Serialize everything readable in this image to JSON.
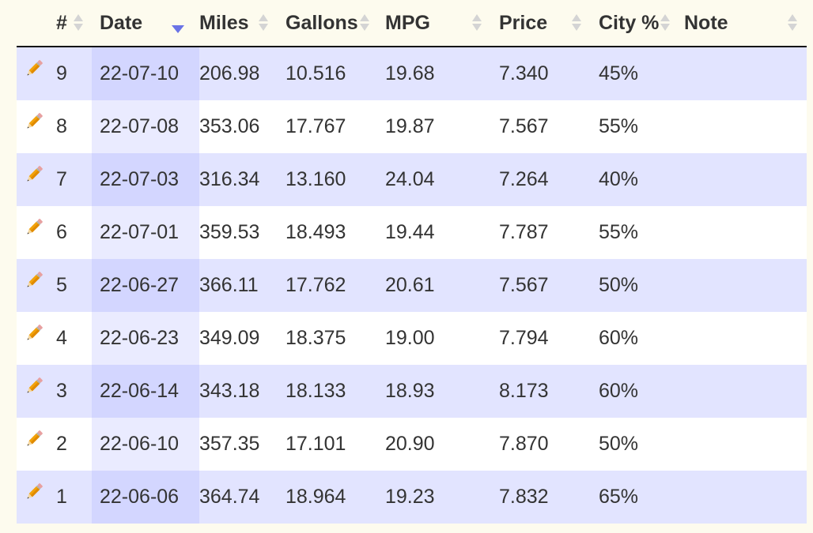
{
  "table": {
    "columns": [
      {
        "key": "edit",
        "label": ""
      },
      {
        "key": "num",
        "label": "#"
      },
      {
        "key": "date",
        "label": "Date",
        "sorted": "desc"
      },
      {
        "key": "miles",
        "label": "Miles"
      },
      {
        "key": "gallons",
        "label": "Gallons"
      },
      {
        "key": "mpg",
        "label": "MPG"
      },
      {
        "key": "price",
        "label": "Price"
      },
      {
        "key": "city",
        "label": "City %"
      },
      {
        "key": "note",
        "label": "Note"
      }
    ],
    "rows": [
      {
        "num": "9",
        "date": "22-07-10",
        "miles": "206.98",
        "gallons": "10.516",
        "mpg": "19.68",
        "price": "7.340",
        "city": "45%",
        "note": ""
      },
      {
        "num": "8",
        "date": "22-07-08",
        "miles": "353.06",
        "gallons": "17.767",
        "mpg": "19.87",
        "price": "7.567",
        "city": "55%",
        "note": ""
      },
      {
        "num": "7",
        "date": "22-07-03",
        "miles": "316.34",
        "gallons": "13.160",
        "mpg": "24.04",
        "price": "7.264",
        "city": "40%",
        "note": ""
      },
      {
        "num": "6",
        "date": "22-07-01",
        "miles": "359.53",
        "gallons": "18.493",
        "mpg": "19.44",
        "price": "7.787",
        "city": "55%",
        "note": ""
      },
      {
        "num": "5",
        "date": "22-06-27",
        "miles": "366.11",
        "gallons": "17.762",
        "mpg": "20.61",
        "price": "7.567",
        "city": "50%",
        "note": ""
      },
      {
        "num": "4",
        "date": "22-06-23",
        "miles": "349.09",
        "gallons": "18.375",
        "mpg": "19.00",
        "price": "7.794",
        "city": "60%",
        "note": ""
      },
      {
        "num": "3",
        "date": "22-06-14",
        "miles": "343.18",
        "gallons": "18.133",
        "mpg": "18.93",
        "price": "8.173",
        "city": "60%",
        "note": ""
      },
      {
        "num": "2",
        "date": "22-06-10",
        "miles": "357.35",
        "gallons": "17.101",
        "mpg": "20.90",
        "price": "7.870",
        "city": "50%",
        "note": ""
      },
      {
        "num": "1",
        "date": "22-06-06",
        "miles": "364.74",
        "gallons": "18.964",
        "mpg": "19.23",
        "price": "7.832",
        "city": "65%",
        "note": ""
      }
    ]
  },
  "icons": {
    "edit": "pencil-icon",
    "sort": "sort-both-icon",
    "sorted_desc": "sort-desc-icon"
  },
  "colors": {
    "page_bg": "#fdfbee",
    "row_odd": "#e2e4ff",
    "row_even": "#ffffff",
    "sorted_odd": "#d3d6ff",
    "sorted_even": "#eaebff",
    "sort_active": "#6a73e6",
    "pencil": "#f2a20a"
  }
}
